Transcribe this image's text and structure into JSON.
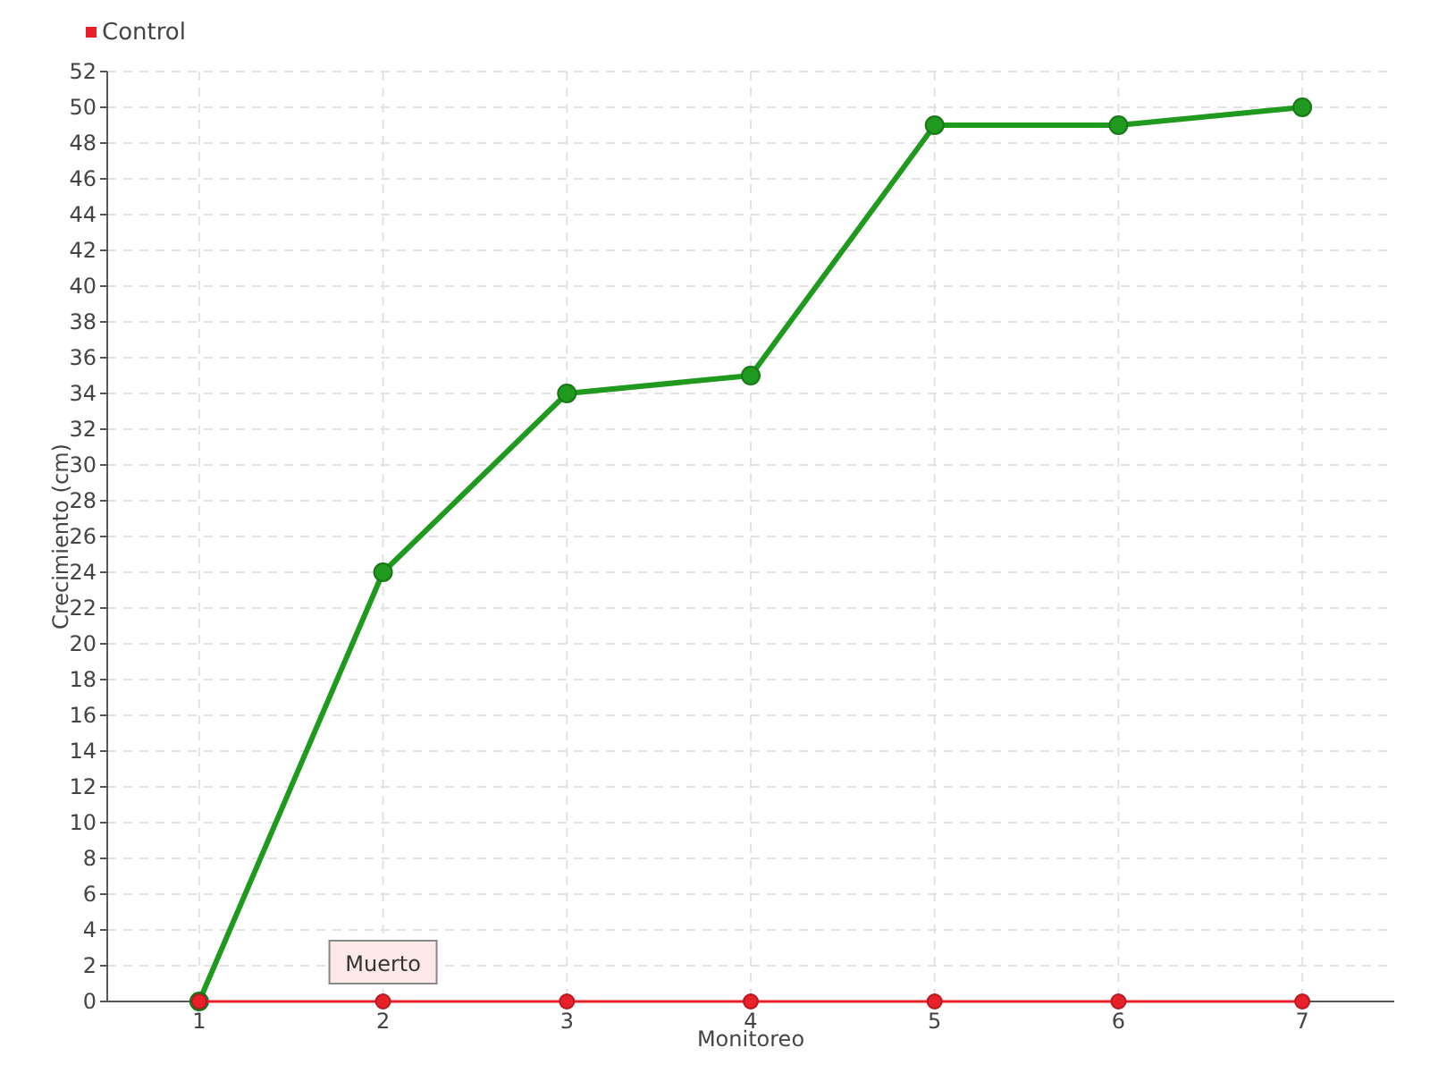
{
  "chart_data": {
    "type": "line",
    "xlabel": "Monitoreo",
    "ylabel": "Crecimiento (cm)",
    "categories": [
      "1",
      "2",
      "3",
      "4",
      "5",
      "6",
      "7"
    ],
    "series": [
      {
        "color": "#1f9a1f",
        "values": [
          0,
          24,
          34,
          35,
          49,
          49,
          50
        ]
      },
      {
        "name": "Control",
        "color": "#e8202a",
        "values": [
          0,
          0,
          0,
          0,
          0,
          0,
          0
        ]
      }
    ],
    "ylim": [
      0,
      52
    ],
    "yticks": [
      0,
      2,
      4,
      6,
      8,
      10,
      12,
      14,
      16,
      18,
      20,
      22,
      24,
      26,
      28,
      30,
      32,
      34,
      36,
      38,
      40,
      42,
      44,
      46,
      48,
      50,
      52
    ],
    "grid": true,
    "legend": "top left",
    "marker": "circle",
    "line_style": "solid",
    "annotations": [
      {
        "text": "Muerto",
        "x": "2",
        "y": 0
      }
    ]
  }
}
